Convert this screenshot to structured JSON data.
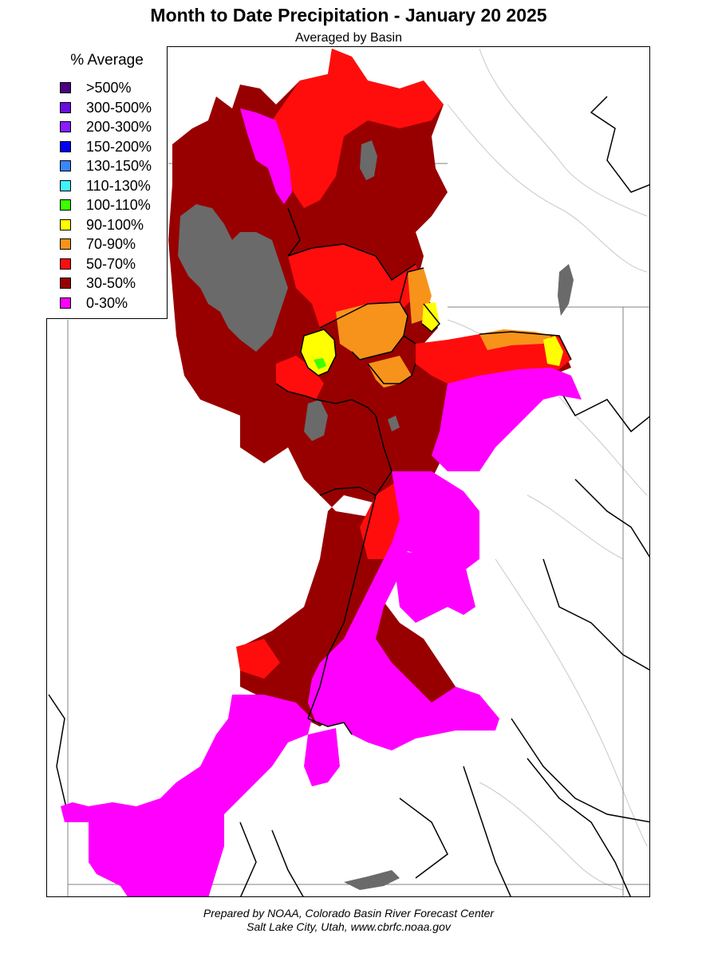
{
  "title": "Month to Date Precipitation - January 20 2025",
  "subtitle": "Averaged by Basin",
  "legend": {
    "title": "% Average",
    "items": [
      {
        "label": ">500%",
        "color": "#4b0082"
      },
      {
        "label": "300-500%",
        "color": "#6a0dde"
      },
      {
        "label": "200-300%",
        "color": "#8a1cff"
      },
      {
        "label": "150-200%",
        "color": "#0000ff"
      },
      {
        "label": "130-150%",
        "color": "#3a86ff"
      },
      {
        "label": "110-130%",
        "color": "#3ff4ff"
      },
      {
        "label": "100-110%",
        "color": "#3cff00"
      },
      {
        "label": "90-100%",
        "color": "#ffff00"
      },
      {
        "label": "70-90%",
        "color": "#f7931a"
      },
      {
        "label": "50-70%",
        "color": "#ff0d0d"
      },
      {
        "label": "30-50%",
        "color": "#980000"
      },
      {
        "label": "0-30%",
        "color": "#ff00ff"
      }
    ]
  },
  "map_colors": {
    "water": "#6a6a6a",
    "state_border": "#808080",
    "basin_outline": "#000000",
    "river": "#c8c8c8"
  },
  "credit": {
    "line1": "Prepared by NOAA, Colorado Basin River Forecast Center",
    "line2": "Salt Lake City, Utah, www.cbrfc.noaa.gov"
  }
}
